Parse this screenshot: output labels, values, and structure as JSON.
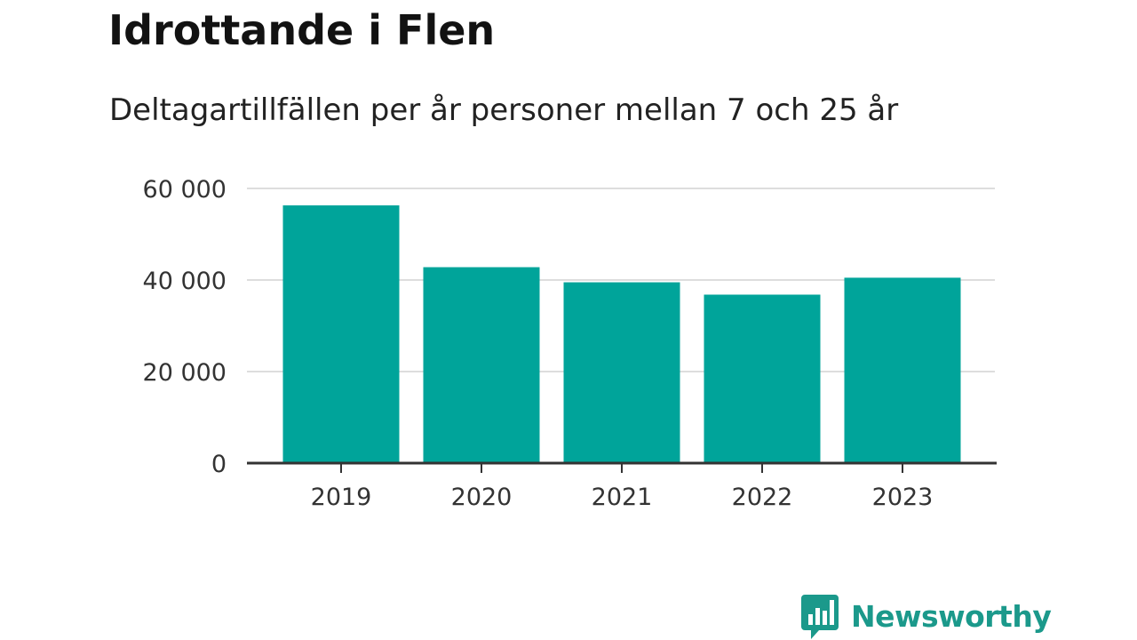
{
  "chart_data": {
    "type": "bar",
    "title": "Idrottande i Flen",
    "subtitle": "Deltagartillfällen per år personer mellan 7 och 25 år",
    "categories": [
      "2019",
      "2020",
      "2021",
      "2022",
      "2023"
    ],
    "values": [
      56300,
      42800,
      39500,
      36800,
      40500
    ],
    "ylim": [
      0,
      60000
    ],
    "yticks": [
      0,
      20000,
      40000,
      60000
    ],
    "ytick_labels": [
      "0",
      "20 000",
      "40 000",
      "60 000"
    ],
    "xlabel": "",
    "ylabel": "",
    "grid": true,
    "bar_color": "#00a49a"
  },
  "brand": {
    "name": "Newsworthy",
    "color": "#1b998b",
    "icon": "bar-chart-speech-bubble-icon"
  }
}
